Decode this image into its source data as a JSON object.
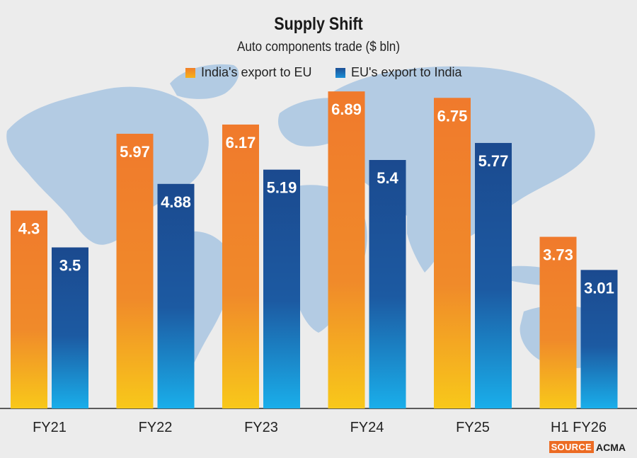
{
  "chart_data": {
    "type": "bar",
    "title": "Supply Shift",
    "subtitle": "Auto components trade ($ bln)",
    "categories": [
      "FY21",
      "FY22",
      "FY23",
      "FY24",
      "FY25",
      "H1 FY26"
    ],
    "series": [
      {
        "name": "India's export to EU",
        "values": [
          4.3,
          5.97,
          6.17,
          6.89,
          6.75,
          3.73
        ],
        "labels": [
          "4.3",
          "5.97",
          "6.17",
          "6.89",
          "6.75",
          "3.73"
        ]
      },
      {
        "name": "EU's export to India",
        "values": [
          3.5,
          4.88,
          5.19,
          5.4,
          5.77,
          3.01
        ],
        "labels": [
          "3.5",
          "4.88",
          "5.19",
          "5.4",
          "5.77",
          "3.01"
        ]
      }
    ],
    "ylim": [
      0,
      7
    ],
    "xlabel": "",
    "ylabel": "",
    "grid": false,
    "legend": "top-center"
  },
  "source": {
    "tag": "SOURCE",
    "name": "ACMA"
  },
  "colors": {
    "india_top": "#f07a2c",
    "india_bottom": "#f8c21a",
    "eu_top": "#1b4a8f",
    "eu_bottom": "#1aa7e8",
    "map": "#a9c6e2",
    "background": "#ececec"
  }
}
